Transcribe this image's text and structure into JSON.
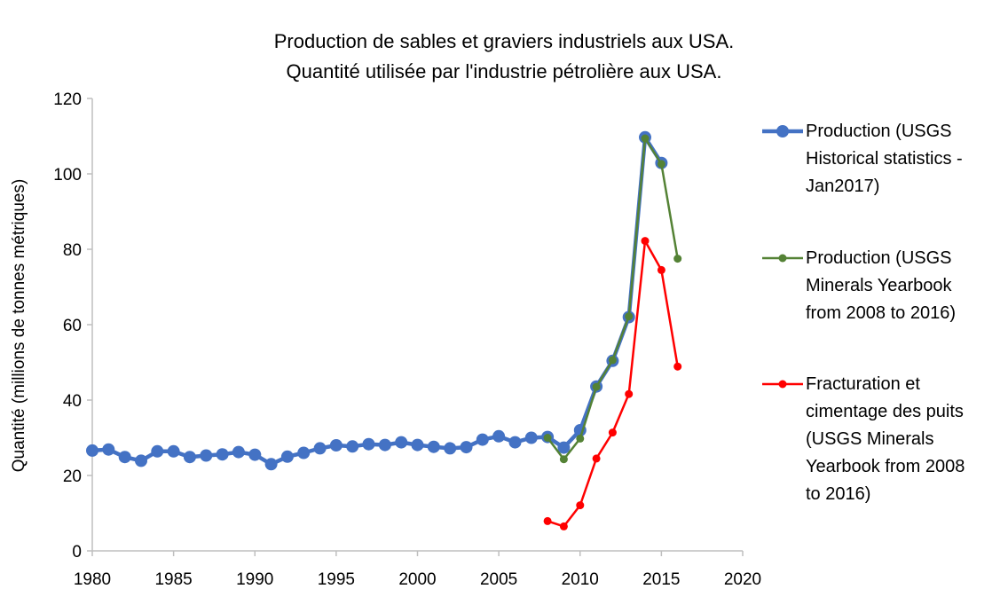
{
  "chart_data": {
    "type": "line",
    "title_lines": [
      "Production de sables et graviers industriels aux USA.",
      "Quantité utilisée par l'industrie pétrolière aux USA."
    ],
    "xlabel": "",
    "ylabel": "Quantité (millions de tonnes métriques)",
    "xlim": [
      1980,
      2020
    ],
    "ylim": [
      0,
      120
    ],
    "x_ticks": [
      1980,
      1985,
      1990,
      1995,
      2000,
      2005,
      2010,
      2015,
      2020
    ],
    "y_ticks": [
      0,
      20,
      40,
      60,
      80,
      100,
      120
    ],
    "grid": false,
    "legend_position": "right",
    "series": [
      {
        "name_lines": [
          "Production (USGS",
          "Historical statistics -",
          "Jan2017)"
        ],
        "color": "#4472C4",
        "line_color": "#4472C4",
        "style": "thick",
        "x": [
          1980,
          1981,
          1982,
          1983,
          1984,
          1985,
          1986,
          1987,
          1988,
          1989,
          1990,
          1991,
          1992,
          1993,
          1994,
          1995,
          1996,
          1997,
          1998,
          1999,
          2000,
          2001,
          2002,
          2003,
          2004,
          2005,
          2006,
          2007,
          2008,
          2009,
          2010,
          2011,
          2012,
          2013,
          2014,
          2015
        ],
        "y": [
          26.6,
          26.9,
          24.9,
          23.9,
          26.4,
          26.4,
          24.9,
          25.3,
          25.6,
          26.2,
          25.5,
          23.0,
          25.0,
          26.0,
          27.2,
          28.0,
          27.7,
          28.3,
          28.1,
          28.8,
          28.1,
          27.6,
          27.2,
          27.5,
          29.5,
          30.4,
          28.8,
          30.0,
          30.2,
          27.4,
          32.0,
          43.6,
          50.4,
          62.0,
          109.7,
          102.9
        ]
      },
      {
        "name_lines": [
          "Production (USGS",
          "Minerals Yearbook",
          "from 2008 to 2016)"
        ],
        "color": "#548235",
        "line_color": "#548235",
        "style": "thin",
        "x": [
          2008,
          2009,
          2010,
          2011,
          2012,
          2013,
          2014,
          2015,
          2016
        ],
        "y": [
          30.0,
          24.3,
          29.8,
          43.5,
          50.6,
          62.2,
          109.4,
          102.6,
          77.5
        ]
      },
      {
        "name_lines": [
          "Fracturation et",
          "cimentage des puits",
          "(USGS Minerals",
          "Yearbook from 2008",
          "to 2016)"
        ],
        "color": "#FF0000",
        "line_color": "#FF0000",
        "style": "thin",
        "x": [
          2008,
          2009,
          2010,
          2011,
          2012,
          2013,
          2014,
          2015,
          2016
        ],
        "y": [
          7.9,
          6.5,
          12.1,
          24.5,
          31.4,
          41.6,
          82.2,
          74.5,
          48.9
        ]
      }
    ]
  }
}
